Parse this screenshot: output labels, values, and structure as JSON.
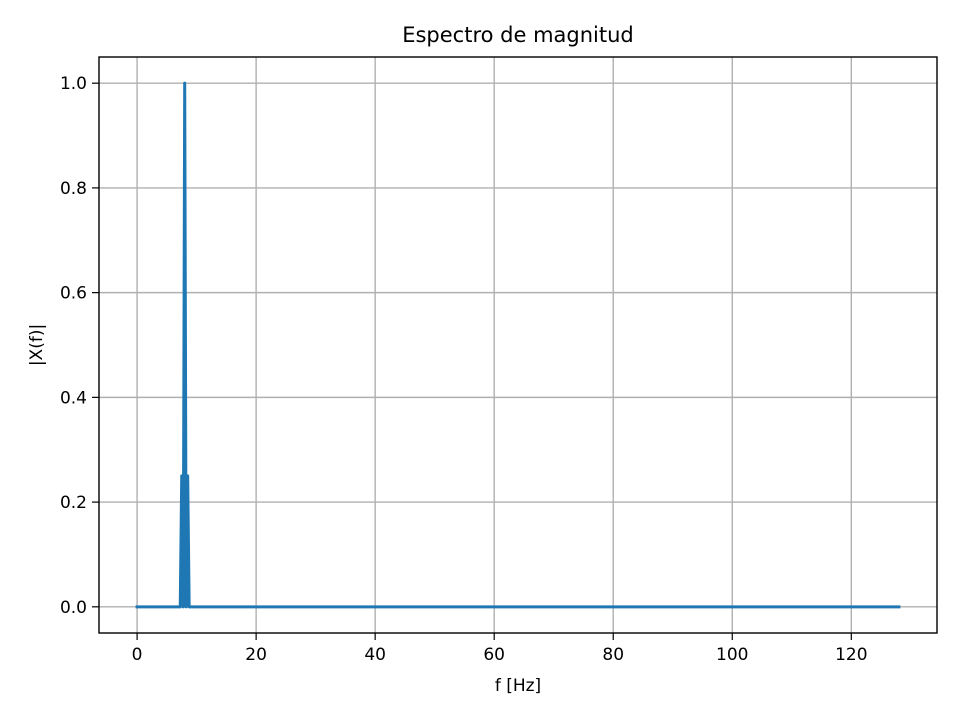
{
  "chart_data": {
    "type": "line",
    "title": "Espectro de magnitud",
    "xlabel": "f [Hz]",
    "ylabel": "|X(f)|",
    "xlim": [
      -6.4,
      134.4
    ],
    "ylim": [
      -0.05,
      1.05
    ],
    "xticks": [
      0,
      20,
      40,
      60,
      80,
      100,
      120
    ],
    "xtick_labels": [
      "0",
      "20",
      "40",
      "60",
      "80",
      "100",
      "120"
    ],
    "yticks": [
      0.0,
      0.2,
      0.4,
      0.6,
      0.8,
      1.0
    ],
    "ytick_labels": [
      "0.0",
      "0.2",
      "0.4",
      "0.6",
      "0.8",
      "1.0"
    ],
    "grid": true,
    "color": "#1f77b4",
    "series": [
      {
        "x": [
          0,
          7.0,
          7.25,
          7.5,
          7.75,
          8.0,
          8.25,
          8.5,
          8.75,
          9.0,
          9.25,
          128
        ],
        "y": [
          0.0,
          0.0,
          0.0,
          0.25,
          0.0,
          1.0,
          0.0,
          0.25,
          0.0,
          0.0,
          0.0,
          0.0
        ]
      }
    ]
  }
}
